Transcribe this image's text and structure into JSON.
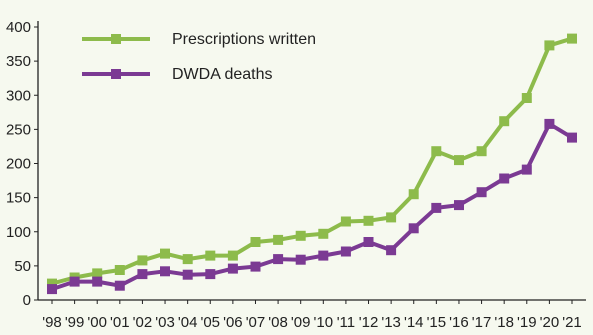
{
  "chart_data": {
    "type": "line",
    "x": [
      "'98",
      "'99",
      "'00",
      "'01",
      "'02",
      "'03",
      "'04",
      "'05",
      "'06",
      "'07",
      "'08",
      "'09",
      "'10",
      "'11",
      "'12",
      "'13",
      "'14",
      "'15",
      "'16",
      "'17",
      "'18",
      "'19",
      "'20",
      "'21"
    ],
    "series": [
      {
        "name": "Prescriptions written",
        "color": "#8dbb4b",
        "values": [
          24,
          33,
          39,
          44,
          58,
          68,
          60,
          65,
          65,
          85,
          88,
          94,
          97,
          115,
          116,
          121,
          155,
          218,
          205,
          218,
          262,
          296,
          373,
          383
        ]
      },
      {
        "name": "DWDA deaths",
        "color": "#7b3a93",
        "values": [
          16,
          27,
          27,
          21,
          38,
          42,
          37,
          38,
          46,
          49,
          60,
          59,
          65,
          71,
          85,
          73,
          105,
          135,
          139,
          158,
          178,
          191,
          258,
          238
        ]
      }
    ],
    "y_ticks": [
      0,
      50,
      100,
      150,
      200,
      250,
      300,
      350,
      400
    ],
    "ylim": [
      0,
      400
    ],
    "title": "",
    "xlabel": "",
    "ylabel": "",
    "grid": false,
    "legend_position": "top-left"
  }
}
